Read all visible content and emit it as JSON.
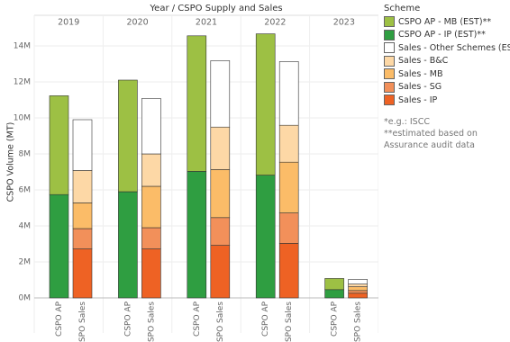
{
  "chart_data": {
    "type": "grouped_stacked_bar",
    "title": "Year / CSPO Supply and Sales",
    "y_label": "CSPO Volume (MT)",
    "legend_title": "Scheme",
    "groups": [
      "2019",
      "2020",
      "2021",
      "2022",
      "2023"
    ],
    "categories": [
      "CSPO AP",
      "CSPO Sales",
      "CSPO AP",
      "CSPO Sales",
      "CSPO AP",
      "CSPO Sales",
      "CSPO AP",
      "CSPO Sales",
      "CSPO AP",
      "CSPO Sales"
    ],
    "series": [
      {
        "name": "CSPO AP - MB (EST)**",
        "color": "#9dc044",
        "values": [
          5490000,
          null,
          6200000,
          null,
          7530000,
          null,
          7850000,
          null,
          620000,
          null
        ]
      },
      {
        "name": "CSPO AP - IP (EST)**",
        "color": "#2f9e41",
        "values": [
          5740000,
          null,
          5900000,
          null,
          7030000,
          null,
          6820000,
          null,
          460000,
          null
        ]
      },
      {
        "name": "Sales - Other Schemes  (EST)*",
        "color": "#ffffff",
        "values": [
          null,
          2820000,
          null,
          3080000,
          null,
          3690000,
          null,
          3540000,
          null,
          260000
        ]
      },
      {
        "name": "Sales - B&C",
        "color": "#fdd8a6",
        "values": [
          null,
          1800000,
          null,
          1800000,
          null,
          2360000,
          null,
          2050000,
          null,
          150000
        ]
      },
      {
        "name": "Sales - MB",
        "color": "#fbbc68",
        "values": [
          null,
          1430000,
          null,
          2300000,
          null,
          2670000,
          null,
          2820000,
          null,
          210000
        ]
      },
      {
        "name": "Sales - SG",
        "color": "#f2905a",
        "values": [
          null,
          1130000,
          null,
          1180000,
          null,
          1540000,
          null,
          1690000,
          null,
          150000
        ]
      },
      {
        "name": "Sales - IP",
        "color": "#ee6224",
        "values": [
          null,
          2720000,
          null,
          2720000,
          null,
          2920000,
          null,
          3030000,
          null,
          260000
        ]
      }
    ],
    "ylim": [
      0,
      14900000
    ],
    "yticks": [
      {
        "value": 0,
        "label": "0M"
      },
      {
        "value": 2000000,
        "label": "2M"
      },
      {
        "value": 4000000,
        "label": "4M"
      },
      {
        "value": 6000000,
        "label": "6M"
      },
      {
        "value": 8000000,
        "label": "8M"
      },
      {
        "value": 10000000,
        "label": "10M"
      },
      {
        "value": 12000000,
        "label": "12M"
      },
      {
        "value": 14000000,
        "label": "14M"
      }
    ],
    "grid": true,
    "notes": [
      "*e.g.: ISCC",
      "**estimated based on Assurance audit data"
    ]
  }
}
